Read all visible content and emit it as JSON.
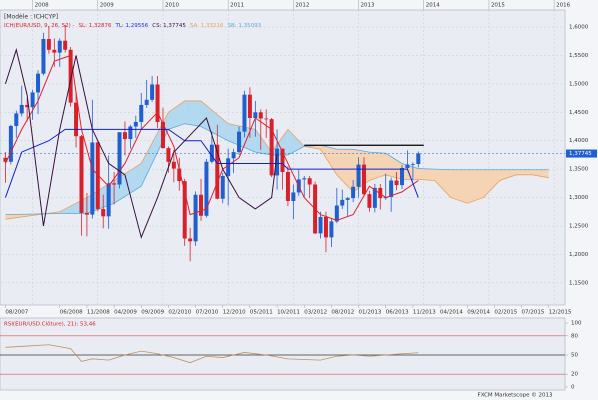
{
  "chart_data": [
    {
      "type": "candlestick",
      "template_label": "[Modèle : ICHCYP]",
      "indicator_label": "ICH(EUR/USD, 9, 26, 52) -",
      "indicator_readouts": [
        {
          "label": "SL: 1,32876",
          "color": "#d8202a"
        },
        {
          "label": "TL: 1,29556",
          "color": "#1d2fd6"
        },
        {
          "label": "CS: 1,37745",
          "color": "#3a1040"
        },
        {
          "label": "SA: 1,33216",
          "color": "#e8a060"
        },
        {
          "label": "SB: 1,35093",
          "color": "#5aaad8"
        }
      ],
      "x": [
        "08/2007",
        "09/2007",
        "10/2007",
        "11/2007",
        "12/2007",
        "01/2008",
        "02/2008",
        "03/2008",
        "04/2008",
        "05/2008",
        "06/2008",
        "07/2008",
        "08/2008",
        "09/2008",
        "10/2008",
        "11/2008",
        "12/2008",
        "01/2009",
        "02/2009",
        "03/2009",
        "04/2009",
        "05/2009",
        "06/2009",
        "07/2009",
        "08/2009",
        "09/2009",
        "10/2009",
        "11/2009",
        "12/2009",
        "01/2010",
        "02/2010",
        "03/2010",
        "04/2010",
        "05/2010",
        "06/2010",
        "07/2010",
        "08/2010",
        "09/2010",
        "10/2010",
        "11/2010",
        "12/2010",
        "01/2011",
        "02/2011",
        "03/2011",
        "04/2011",
        "05/2011",
        "06/2011",
        "07/2011",
        "08/2011",
        "09/2011",
        "10/2011",
        "11/2011",
        "12/2011",
        "01/2012",
        "02/2012",
        "03/2012",
        "04/2012",
        "05/2012",
        "06/2012",
        "07/2012",
        "08/2012",
        "09/2012",
        "10/2012",
        "11/2012",
        "12/2012",
        "01/2013",
        "02/2013",
        "03/2013",
        "04/2013",
        "05/2013",
        "06/2013",
        "07/2013",
        "08/2013",
        "09/2013",
        "10/2013",
        "11/2013",
        "12/2013"
      ],
      "open": [
        1.37,
        1.363,
        1.426,
        1.448,
        1.463,
        1.459,
        1.485,
        1.518,
        1.579,
        1.56,
        1.555,
        1.576,
        1.56,
        1.467,
        1.408,
        1.273,
        1.27,
        1.397,
        1.28,
        1.267,
        1.325,
        1.323,
        1.415,
        1.403,
        1.425,
        1.433,
        1.463,
        1.472,
        1.499,
        1.433,
        1.387,
        1.363,
        1.351,
        1.329,
        1.228,
        1.223,
        1.305,
        1.268,
        1.363,
        1.393,
        1.298,
        1.338,
        1.369,
        1.38,
        1.416,
        1.481,
        1.44,
        1.45,
        1.439,
        1.438,
        1.339,
        1.386,
        1.345,
        1.294,
        1.309,
        1.332,
        1.334,
        1.323,
        1.237,
        1.266,
        1.23,
        1.258,
        1.286,
        1.296,
        1.299,
        1.319,
        1.358,
        1.306,
        1.282,
        1.317,
        1.299,
        1.301,
        1.33,
        1.322,
        1.352,
        1.358,
        1.359
      ],
      "high": [
        1.38,
        1.428,
        1.453,
        1.497,
        1.475,
        1.49,
        1.524,
        1.59,
        1.602,
        1.58,
        1.58,
        1.604,
        1.565,
        1.486,
        1.41,
        1.308,
        1.472,
        1.4,
        1.305,
        1.374,
        1.345,
        1.415,
        1.434,
        1.428,
        1.444,
        1.484,
        1.507,
        1.514,
        1.514,
        1.458,
        1.39,
        1.384,
        1.37,
        1.333,
        1.247,
        1.311,
        1.333,
        1.368,
        1.416,
        1.428,
        1.344,
        1.386,
        1.386,
        1.425,
        1.488,
        1.494,
        1.47,
        1.455,
        1.455,
        1.44,
        1.42,
        1.386,
        1.355,
        1.323,
        1.349,
        1.338,
        1.338,
        1.328,
        1.275,
        1.275,
        1.264,
        1.317,
        1.314,
        1.301,
        1.331,
        1.371,
        1.371,
        1.312,
        1.324,
        1.324,
        1.342,
        1.335,
        1.345,
        1.357,
        1.383,
        1.362,
        1.381
      ],
      "low": [
        1.326,
        1.358,
        1.405,
        1.443,
        1.434,
        1.437,
        1.447,
        1.515,
        1.553,
        1.53,
        1.53,
        1.555,
        1.46,
        1.388,
        1.233,
        1.232,
        1.263,
        1.276,
        1.246,
        1.245,
        1.288,
        1.316,
        1.374,
        1.386,
        1.405,
        1.42,
        1.458,
        1.468,
        1.422,
        1.386,
        1.344,
        1.327,
        1.312,
        1.215,
        1.188,
        1.215,
        1.259,
        1.265,
        1.36,
        1.297,
        1.29,
        1.286,
        1.343,
        1.375,
        1.406,
        1.405,
        1.407,
        1.384,
        1.405,
        1.336,
        1.314,
        1.314,
        1.285,
        1.262,
        1.303,
        1.3,
        1.299,
        1.236,
        1.228,
        1.204,
        1.213,
        1.255,
        1.28,
        1.266,
        1.292,
        1.3,
        1.304,
        1.275,
        1.274,
        1.279,
        1.296,
        1.275,
        1.313,
        1.315,
        1.348,
        1.33,
        1.353
      ],
      "close": [
        1.363,
        1.426,
        1.448,
        1.463,
        1.459,
        1.485,
        1.518,
        1.579,
        1.56,
        1.555,
        1.576,
        1.56,
        1.467,
        1.408,
        1.273,
        1.27,
        1.397,
        1.28,
        1.267,
        1.325,
        1.323,
        1.415,
        1.403,
        1.425,
        1.433,
        1.463,
        1.472,
        1.499,
        1.433,
        1.387,
        1.363,
        1.351,
        1.329,
        1.228,
        1.223,
        1.305,
        1.268,
        1.363,
        1.393,
        1.298,
        1.338,
        1.369,
        1.38,
        1.416,
        1.481,
        1.44,
        1.45,
        1.439,
        1.438,
        1.339,
        1.386,
        1.345,
        1.294,
        1.309,
        1.332,
        1.334,
        1.323,
        1.237,
        1.266,
        1.23,
        1.258,
        1.286,
        1.296,
        1.299,
        1.319,
        1.358,
        1.306,
        1.282,
        1.317,
        1.299,
        1.301,
        1.33,
        1.322,
        1.352,
        1.358,
        1.359,
        1.3775
      ],
      "up_color": "#1f5fcf",
      "down_color": "#d8202a",
      "xlim": [
        "07/2007",
        "03/2016"
      ],
      "xticks": [
        "08/2007",
        "06/2008",
        "11/2008",
        "04/2009",
        "09/2009",
        "02/2010",
        "07/2010",
        "12/2010",
        "05/2011",
        "10/2011",
        "03/2012",
        "08/2012",
        "01/2013",
        "06/2013",
        "11/2013",
        "04/2014",
        "09/2014",
        "02/2015",
        "07/2015",
        "12/2015"
      ],
      "top_ticks": [
        "2008",
        "2009",
        "2010",
        "2011",
        "2012",
        "2013",
        "2014",
        "2015",
        "2016"
      ],
      "ylim": [
        1.111,
        1.63
      ],
      "yticks": [
        {
          "value": 1.15,
          "label": "1,1500"
        },
        {
          "value": 1.2,
          "label": "1,2000"
        },
        {
          "value": 1.25,
          "label": "1,2500"
        },
        {
          "value": 1.3,
          "label": "1,3000"
        },
        {
          "value": 1.35,
          "label": "1,3500"
        },
        {
          "value": 1.4,
          "label": "1,4000"
        },
        {
          "value": 1.45,
          "label": "1,4500"
        },
        {
          "value": 1.5,
          "label": "1,5000"
        },
        {
          "value": 1.55,
          "label": "1,5500"
        },
        {
          "value": 1.6,
          "label": "1,6000"
        }
      ],
      "grid": true,
      "cloud": {
        "x": [
          "08/2007",
          "06/2008",
          "11/2008",
          "04/2009",
          "09/2009",
          "02/2010",
          "05/2010",
          "08/2010",
          "01/2011",
          "06/2011",
          "09/2011",
          "12/2011",
          "03/2012",
          "06/2012",
          "09/2012",
          "12/2012",
          "03/2013",
          "06/2013",
          "09/2013",
          "12/2013",
          "03/2014",
          "06/2014",
          "09/2014",
          "12/2014",
          "03/2015",
          "06/2015",
          "09/2015",
          "12/2015"
        ],
        "span_a": [
          1.262,
          1.275,
          1.3,
          1.33,
          1.36,
          1.45,
          1.47,
          1.47,
          1.43,
          1.42,
          1.38,
          1.42,
          1.39,
          1.385,
          1.34,
          1.31,
          1.33,
          1.34,
          1.332,
          1.332,
          1.33,
          1.3,
          1.29,
          1.3,
          1.33,
          1.34,
          1.34,
          1.335
        ],
        "span_b": [
          1.27,
          1.272,
          1.272,
          1.29,
          1.32,
          1.42,
          1.43,
          1.425,
          1.4,
          1.38,
          1.375,
          1.375,
          1.39,
          1.392,
          1.385,
          1.385,
          1.38,
          1.378,
          1.36,
          1.351,
          1.35,
          1.349,
          1.349,
          1.349,
          1.349,
          1.349,
          1.349,
          1.349
        ],
        "bull_color": "#a9d5ee",
        "bear_color": "#f6cfa8",
        "span_a_color": "#e8a060",
        "span_b_color": "#5aaad8"
      },
      "lines": [
        {
          "color": "#e0202a",
          "x": [
            "08/2007",
            "11/2007",
            "02/2008",
            "05/2008",
            "08/2008",
            "10/2008",
            "12/2008",
            "03/2009",
            "06/2009",
            "09/2009",
            "12/2009",
            "03/2010",
            "06/2010",
            "09/2010",
            "12/2010",
            "03/2011",
            "06/2011",
            "09/2011",
            "12/2011",
            "03/2012",
            "06/2012",
            "09/2012",
            "12/2012",
            "03/2013",
            "06/2013",
            "09/2013",
            "12/2013"
          ],
          "values": [
            1.36,
            1.42,
            1.47,
            1.54,
            1.55,
            1.42,
            1.35,
            1.32,
            1.36,
            1.42,
            1.45,
            1.39,
            1.27,
            1.28,
            1.35,
            1.37,
            1.44,
            1.42,
            1.36,
            1.3,
            1.27,
            1.26,
            1.27,
            1.32,
            1.3,
            1.31,
            1.33
          ]
        },
        {
          "color": "#1020d0",
          "x": [
            "08/2007",
            "11/2007",
            "04/2008",
            "07/2008",
            "11/2008",
            "03/2009",
            "09/2009",
            "12/2009",
            "02/2010",
            "05/2010",
            "08/2010",
            "11/2010",
            "03/2011",
            "07/2011",
            "11/2011",
            "12/2011",
            "06/2012",
            "12/2012",
            "06/2013",
            "10/2013",
            "12/2013"
          ],
          "values": [
            1.3,
            1.38,
            1.4,
            1.42,
            1.42,
            1.42,
            1.42,
            1.42,
            1.42,
            1.4,
            1.4,
            1.36,
            1.36,
            1.36,
            1.36,
            1.35,
            1.35,
            1.35,
            1.35,
            1.35,
            1.3
          ]
        },
        {
          "color": "#3a1040",
          "x": [
            "08/2007",
            "10/2007",
            "12/2007",
            "03/2008",
            "06/2008",
            "09/2008",
            "12/2008",
            "03/2009",
            "06/2009",
            "09/2009",
            "12/2009",
            "03/2010",
            "06/2010",
            "09/2010",
            "12/2010",
            "03/2011",
            "06/2011",
            "09/2011",
            "10/2011"
          ],
          "values": [
            1.5,
            1.56,
            1.48,
            1.25,
            1.42,
            1.55,
            1.42,
            1.36,
            1.34,
            1.23,
            1.3,
            1.38,
            1.41,
            1.44,
            1.35,
            1.3,
            1.28,
            1.3,
            1.3775
          ]
        }
      ],
      "levels": [
        {
          "value": 1.392,
          "from": "03/2012",
          "to": "01/2014",
          "color": "#000000"
        }
      ],
      "last_price": {
        "value": 1.37745,
        "label": "1,37745",
        "color": "#1f5fcf"
      }
    },
    {
      "type": "line",
      "title": "RSI(EUR/USD.Clôture), 21): 53,46",
      "color": "#c09060",
      "x": [
        "08/2007",
        "12/2007",
        "04/2008",
        "08/2008",
        "10/2008",
        "12/2008",
        "03/2009",
        "06/2009",
        "09/2009",
        "12/2009",
        "03/2010",
        "06/2010",
        "09/2010",
        "12/2010",
        "04/2011",
        "08/2011",
        "12/2011",
        "06/2012",
        "09/2012",
        "12/2012",
        "03/2013",
        "06/2013",
        "09/2013",
        "12/2013"
      ],
      "values": [
        62,
        64,
        66,
        60,
        40,
        44,
        42,
        50,
        56,
        52,
        46,
        38,
        48,
        46,
        54,
        50,
        44,
        42,
        48,
        50,
        48,
        50,
        52,
        53.46
      ],
      "ylim": [
        0,
        100
      ],
      "yticks": [
        0,
        20,
        50,
        80,
        100
      ],
      "reference_lines": [
        {
          "value": 80,
          "color": "#e05050"
        },
        {
          "value": 50,
          "color": "#333333"
        },
        {
          "value": 20,
          "color": "#e05050"
        }
      ]
    }
  ],
  "footer": "FXCM Marketscope © 2013"
}
